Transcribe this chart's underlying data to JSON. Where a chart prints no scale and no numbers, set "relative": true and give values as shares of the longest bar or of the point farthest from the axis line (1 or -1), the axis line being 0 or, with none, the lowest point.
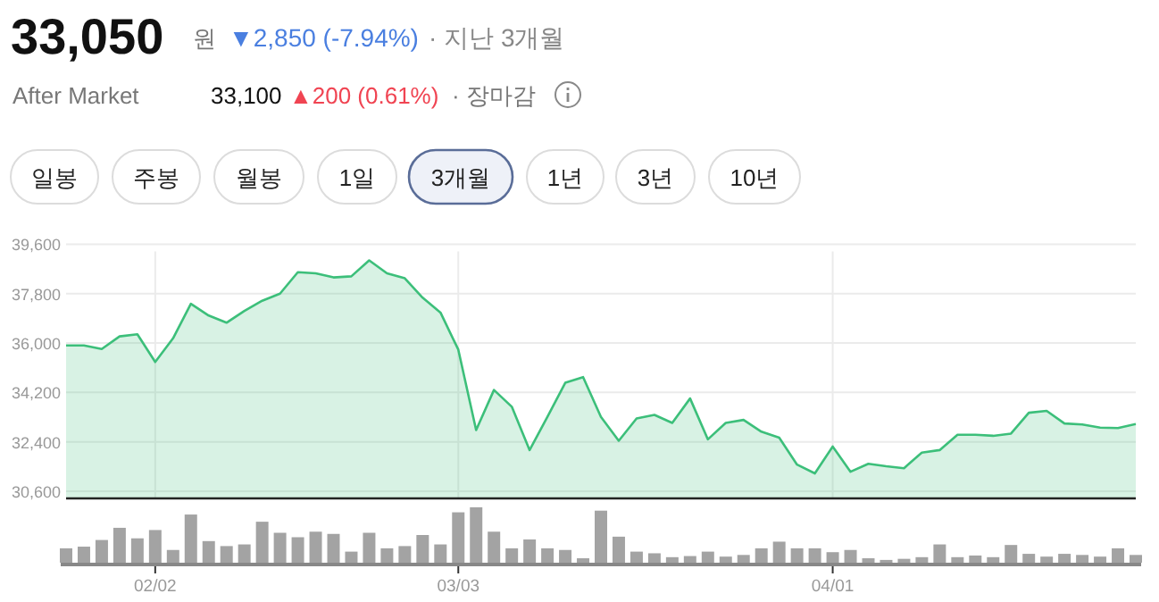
{
  "chart_data": [
    {
      "type": "area",
      "title": "33,050",
      "annotations": [
        "원",
        "▼2,850 (-7.94%)",
        "· 지난 3개월",
        "After Market",
        "33,100",
        "▲200 (0.61%)",
        "· 장마감",
        "일봉",
        "주봉",
        "월봉",
        "1일",
        "3개월",
        "1년",
        "3년",
        "10년"
      ],
      "categories": [
        null,
        null,
        null,
        null,
        null,
        null,
        null,
        null,
        null,
        null,
        null,
        null,
        null,
        null,
        null,
        null,
        null,
        null,
        null,
        null,
        null,
        null,
        null,
        null,
        null,
        null,
        null,
        null,
        null,
        null,
        null,
        null,
        null,
        null,
        null,
        null,
        null,
        null,
        null,
        null,
        null,
        null,
        null,
        null,
        null,
        null,
        null,
        null,
        null,
        null,
        null,
        null,
        null,
        null,
        null,
        null,
        null,
        null,
        null,
        null,
        null
      ],
      "series": [
        {
          "color": "#3cbf7a",
          "values": [
            35910,
            35910,
            35780,
            36240,
            36320,
            35310,
            36170,
            37430,
            37000,
            36740,
            37170,
            37540,
            37800,
            38580,
            38540,
            38390,
            38430,
            39010,
            38540,
            38360,
            37650,
            37110,
            35760,
            32830,
            34290,
            33680,
            32100,
            33310,
            34550,
            34760,
            33310,
            32440,
            33250,
            33380,
            33090,
            33980,
            32490,
            33090,
            33200,
            32770,
            32550,
            31570,
            31250,
            32230,
            31310,
            31600,
            31510,
            31440,
            32010,
            32100,
            32660,
            32660,
            32620,
            32700,
            33460,
            33530,
            33070,
            33030,
            32920,
            32900,
            33050
          ]
        }
      ],
      "ylim": [
        30340,
        39600
      ],
      "yticks": [
        {
          "value": 30600,
          "label": "30,600"
        },
        {
          "value": 32400,
          "label": "32,400"
        },
        {
          "value": 34200,
          "label": "34,200"
        },
        {
          "value": 36000,
          "label": "36,000"
        },
        {
          "value": 37800,
          "label": "37,800"
        },
        {
          "value": 39600,
          "label": "39,600"
        }
      ],
      "grid": true,
      "tick_labels": "y"
    },
    {
      "type": "bar",
      "relative": true,
      "tick_labels": "x",
      "categories": [
        null,
        null,
        null,
        null,
        null,
        "02/02",
        null,
        null,
        null,
        null,
        null,
        null,
        null,
        null,
        null,
        null,
        null,
        null,
        null,
        null,
        null,
        null,
        "03/03",
        null,
        null,
        null,
        null,
        null,
        null,
        null,
        null,
        null,
        null,
        null,
        null,
        null,
        null,
        null,
        null,
        null,
        null,
        null,
        null,
        "04/01",
        null,
        null,
        null,
        null,
        null,
        null,
        null,
        null,
        null,
        null,
        null,
        null,
        null,
        null,
        null,
        null,
        null
      ],
      "series": [
        {
          "color": "#a3a3a3",
          "values": [
            0.26,
            0.29,
            0.41,
            0.63,
            0.44,
            0.59,
            0.23,
            0.87,
            0.39,
            0.3,
            0.33,
            0.74,
            0.54,
            0.46,
            0.56,
            0.52,
            0.2,
            0.54,
            0.26,
            0.3,
            0.5,
            0.33,
            0.91,
            1,
            0.56,
            0.26,
            0.42,
            0.26,
            0.23,
            0.08,
            0.94,
            0.47,
            0.2,
            0.17,
            0.1,
            0.12,
            0.2,
            0.11,
            0.14,
            0.26,
            0.38,
            0.26,
            0.26,
            0.19,
            0.23,
            0.08,
            0.05,
            0.07,
            0.1,
            0.33,
            0.1,
            0.13,
            0.1,
            0.32,
            0.16,
            0.11,
            0.16,
            0.14,
            0.11,
            0.26,
            0.14
          ]
        }
      ]
    }
  ]
}
